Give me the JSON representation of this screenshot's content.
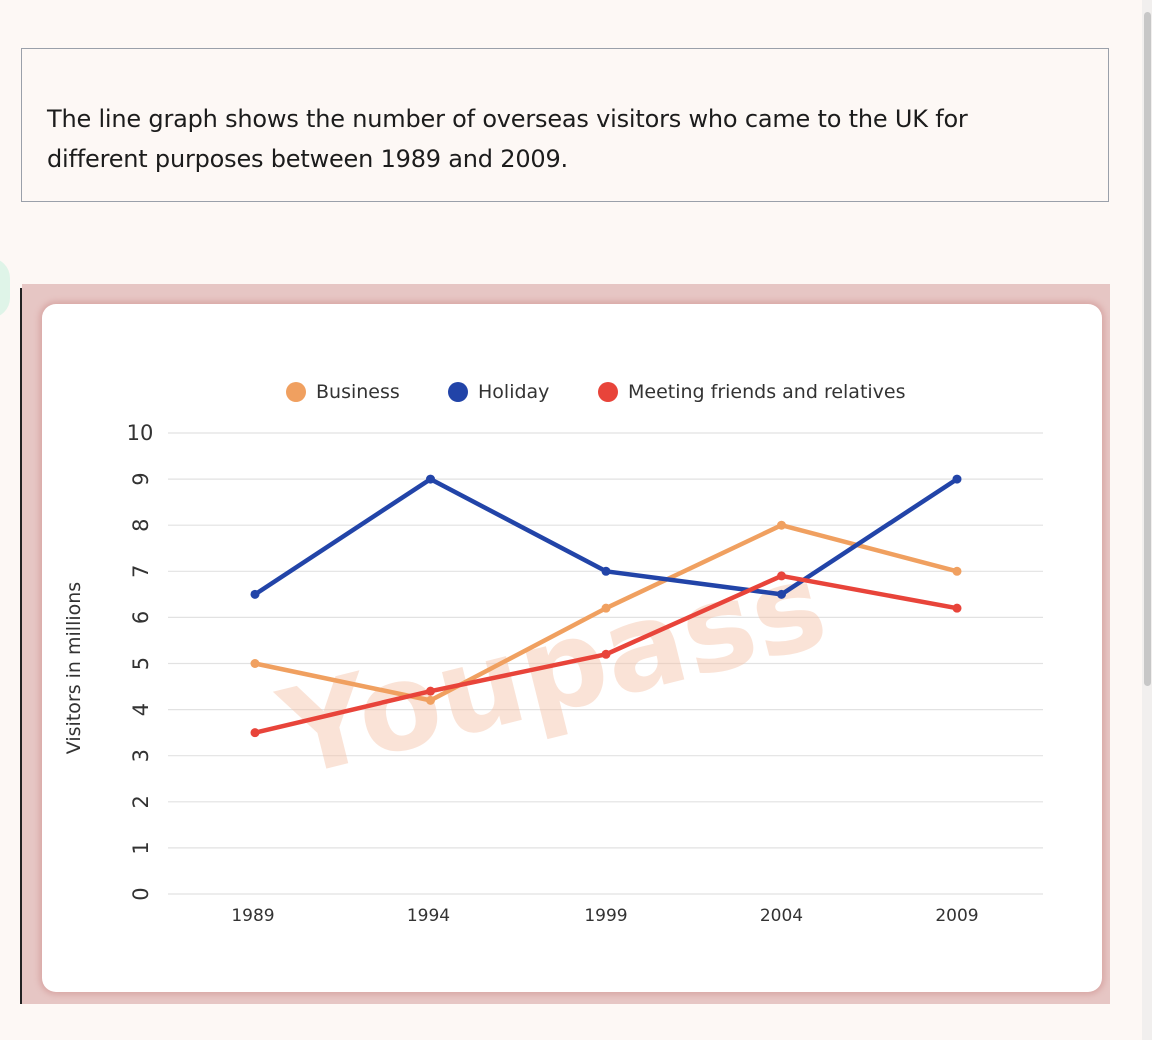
{
  "prompt": {
    "text": "The line graph shows the number of overseas visitors who came to the UK for different purposes between 1989 and 2009."
  },
  "watermark": "Youpass",
  "colors": {
    "business": "#f0a060",
    "holiday": "#2244a8",
    "meeting": "#e8443a",
    "grid": "#e2e2e2"
  },
  "chart_data": {
    "type": "line",
    "title": "",
    "xlabel": "",
    "ylabel": "Visitors in millions",
    "categories": [
      "1989",
      "1994",
      "1999",
      "2004",
      "2009"
    ],
    "ylim": [
      0,
      10
    ],
    "yticks": [
      "0",
      "1",
      "2",
      "3",
      "4",
      "5",
      "6",
      "7",
      "8",
      "9",
      "10"
    ],
    "grid": true,
    "legend_position": "top",
    "series": [
      {
        "name": "Business",
        "color": "#f0a060",
        "values": [
          5,
          4.2,
          6.2,
          8,
          7
        ]
      },
      {
        "name": "Holiday",
        "color": "#2244a8",
        "values": [
          6.5,
          9,
          7,
          6.5,
          9
        ]
      },
      {
        "name": "Meeting friends and relatives",
        "color": "#e8443a",
        "values": [
          3.5,
          4.4,
          5.2,
          6.9,
          6.2
        ]
      }
    ]
  }
}
